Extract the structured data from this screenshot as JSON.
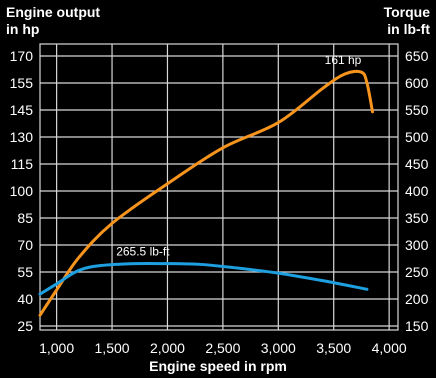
{
  "chart_data": {
    "type": "line",
    "title": "",
    "left_axis": {
      "label_lines": [
        "Engine output",
        "in hp"
      ],
      "ticks": [
        25,
        40,
        55,
        70,
        85,
        100,
        115,
        130,
        145,
        155,
        170
      ],
      "range": [
        25,
        180
      ]
    },
    "right_axis": {
      "label_lines": [
        "Torque",
        "in lb-ft"
      ],
      "ticks": [
        150,
        200,
        250,
        300,
        350,
        400,
        450,
        500,
        550,
        600,
        650
      ]
    },
    "x_axis": {
      "label": "Engine speed in rpm",
      "ticks": [
        1000,
        1500,
        2000,
        2500,
        3000,
        3500,
        4000
      ],
      "tick_labels": [
        "1,000",
        "1,500",
        "2,000",
        "2,500",
        "3,000",
        "3,500",
        "4,000"
      ],
      "range": [
        850,
        4080
      ]
    },
    "grid": true,
    "series": [
      {
        "axis": "left",
        "color": "#f7941d",
        "x": [
          850,
          1000,
          1200,
          1500,
          2000,
          2500,
          3000,
          3400,
          3600,
          3750,
          3800,
          3850
        ],
        "y": [
          31,
          45,
          63,
          82,
          104,
          124,
          138,
          153,
          160,
          161,
          155,
          144
        ]
      },
      {
        "axis": "right",
        "color": "#1e9fe0",
        "x": [
          850,
          1000,
          1200,
          1400,
          1700,
          2000,
          2300,
          2600,
          3000,
          3400,
          3800
        ],
        "y": [
          209,
          228,
          253,
          262,
          265.5,
          265.5,
          264,
          258,
          248,
          234,
          218
        ]
      }
    ],
    "annotations": [
      {
        "text": "161 hp",
        "series": 0,
        "x": 3620,
        "y": 161
      },
      {
        "text": "265.5 lb-ft",
        "series": 1,
        "x": 1700,
        "y": 265.5
      }
    ]
  }
}
